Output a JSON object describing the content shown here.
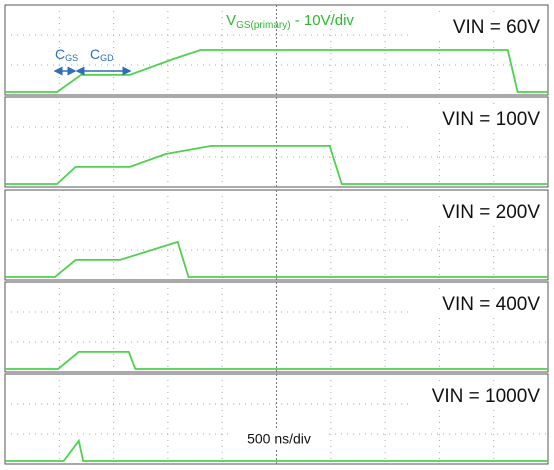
{
  "chart_data": [
    {
      "type": "line",
      "title": "VIN = 60V",
      "x": [
        0,
        480,
        700,
        1150,
        1550,
        1800,
        4630,
        4720,
        5000
      ],
      "values": [
        0,
        0,
        5.7,
        5.7,
        11,
        14,
        14,
        0,
        0
      ],
      "color": "#4fd14f",
      "xlim": [
        0,
        5000
      ],
      "ylim": [
        -1,
        29
      ],
      "annotations": [
        {
          "text": "V",
          "sub": "GS(primary)",
          "suffix": " - 10V/div"
        },
        {
          "text": "C",
          "sub": "GS"
        },
        {
          "text": "C",
          "sub": "GD"
        }
      ]
    },
    {
      "type": "line",
      "title": "VIN = 100V",
      "x": [
        0,
        480,
        650,
        1150,
        1480,
        1900,
        2990,
        3100,
        5000
      ],
      "values": [
        0,
        0,
        5.7,
        5.7,
        10,
        12.7,
        12.7,
        0,
        0
      ],
      "color": "#4fd14f",
      "xlim": [
        0,
        5000
      ],
      "ylim": [
        -1,
        29
      ]
    },
    {
      "type": "line",
      "title": "VIN = 200V",
      "x": [
        0,
        460,
        650,
        1060,
        1590,
        1690,
        5000
      ],
      "values": [
        0,
        0,
        5.7,
        5.7,
        11.7,
        0,
        0
      ],
      "color": "#4fd14f",
      "xlim": [
        0,
        5000
      ],
      "ylim": [
        -1,
        29
      ]
    },
    {
      "type": "line",
      "title": "VIN = 400V",
      "x": [
        0,
        490,
        680,
        1140,
        1200,
        5000
      ],
      "values": [
        0,
        0,
        5.7,
        5.7,
        0,
        0
      ],
      "color": "#4fd14f",
      "xlim": [
        0,
        5000
      ],
      "ylim": [
        -1,
        29
      ]
    },
    {
      "type": "line",
      "title": "VIN = 1000V",
      "x": [
        0,
        540,
        680,
        720,
        5000
      ],
      "values": [
        0,
        0,
        6.7,
        0,
        0
      ],
      "color": "#4fd14f",
      "xlim": [
        0,
        5000
      ],
      "ylim": [
        -1,
        29
      ],
      "x_label": "500 ns/div"
    }
  ]
}
